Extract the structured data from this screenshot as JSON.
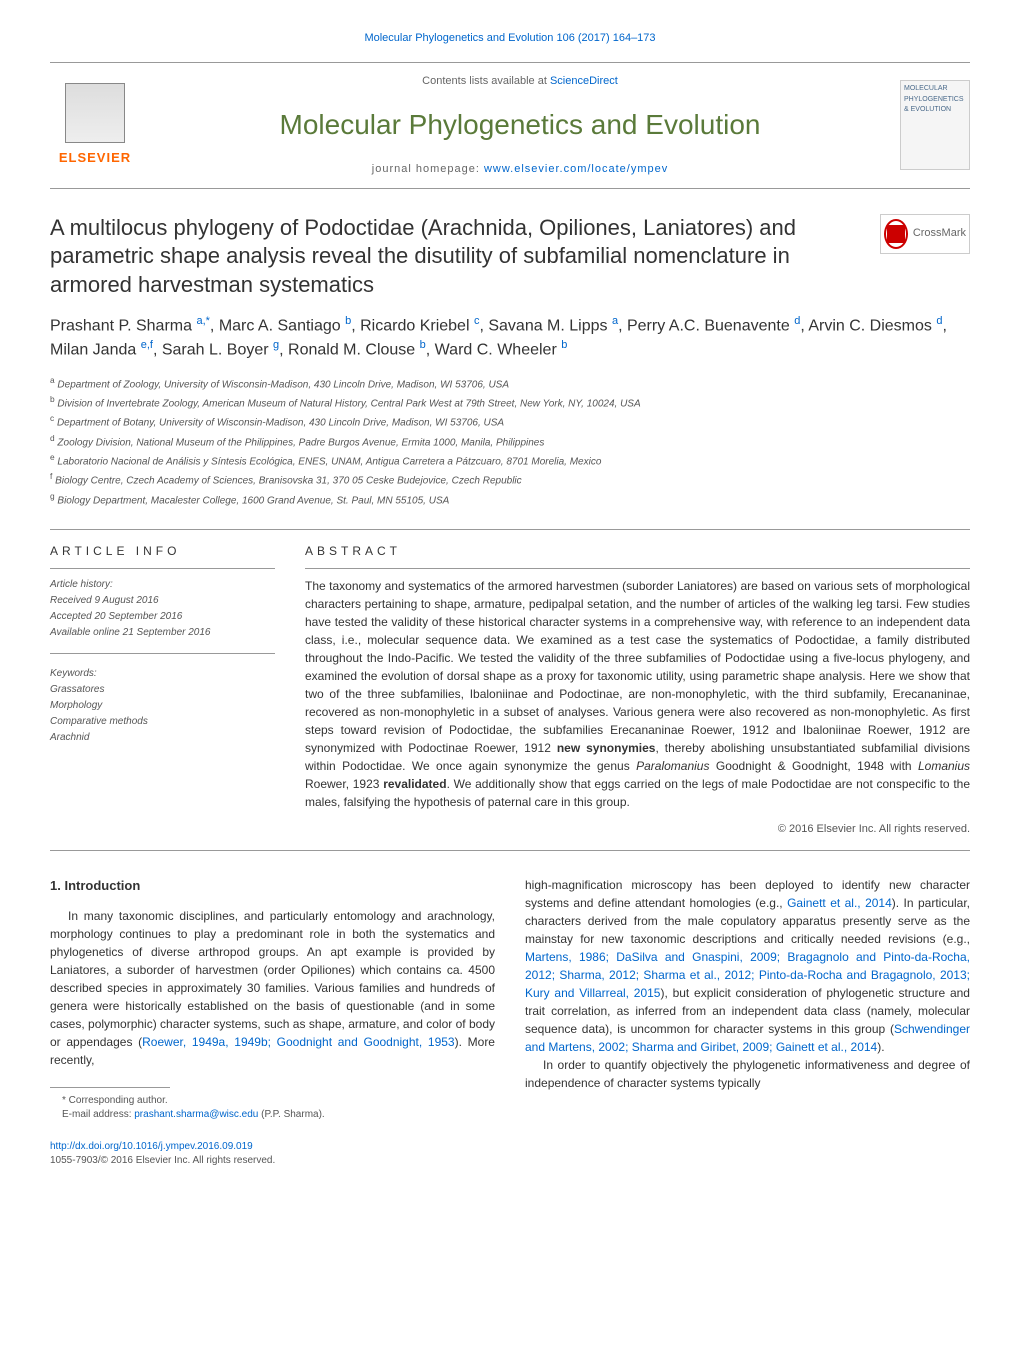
{
  "header": {
    "citation_link": "Molecular Phylogenetics and Evolution 106 (2017) 164–173"
  },
  "top": {
    "publisher": "ELSEVIER",
    "contents_prefix": "Contents lists available at ",
    "contents_link": "ScienceDirect",
    "journal_title": "Molecular Phylogenetics and Evolution",
    "homepage_prefix": "journal homepage: ",
    "homepage_link": "www.elsevier.com/locate/ympev",
    "cover_text": "MOLECULAR PHYLOGENETICS & EVOLUTION"
  },
  "article": {
    "title": "A multilocus phylogeny of Podoctidae (Arachnida, Opiliones, Laniatores) and parametric shape analysis reveal the disutility of subfamilial nomenclature in armored harvestman systematics",
    "crossmark": "CrossMark",
    "authors_html": "Prashant P. Sharma <sup>a,*</sup>, Marc A. Santiago <sup>b</sup>, Ricardo Kriebel <sup>c</sup>, Savana M. Lipps <sup>a</sup>, Perry A.C. Buenavente <sup>d</sup>, Arvin C. Diesmos <sup>d</sup>, Milan Janda <sup>e,f</sup>, Sarah L. Boyer <sup>g</sup>, Ronald M. Clouse <sup>b</sup>, Ward C. Wheeler <sup>b</sup>",
    "affiliations": [
      "a Department of Zoology, University of Wisconsin-Madison, 430 Lincoln Drive, Madison, WI 53706, USA",
      "b Division of Invertebrate Zoology, American Museum of Natural History, Central Park West at 79th Street, New York, NY, 10024, USA",
      "c Department of Botany, University of Wisconsin-Madison, 430 Lincoln Drive, Madison, WI 53706, USA",
      "d Zoology Division, National Museum of the Philippines, Padre Burgos Avenue, Ermita 1000, Manila, Philippines",
      "e Laboratorio Nacional de Análisis y Síntesis Ecológica, ENES, UNAM, Antigua Carretera a Pátzcuaro, 8701 Morelia, Mexico",
      "f Biology Centre, Czech Academy of Sciences, Branisovska 31, 370 05 Ceske Budejovice, Czech Republic",
      "g Biology Department, Macalester College, 1600 Grand Avenue, St. Paul, MN 55105, USA"
    ]
  },
  "info": {
    "label": "ARTICLE INFO",
    "history_label": "Article history:",
    "received": "Received 9 August 2016",
    "accepted": "Accepted 20 September 2016",
    "online": "Available online 21 September 2016",
    "keywords_label": "Keywords:",
    "keywords": [
      "Grassatores",
      "Morphology",
      "Comparative methods",
      "Arachnid"
    ]
  },
  "abstract": {
    "label": "ABSTRACT",
    "text_html": "The taxonomy and systematics of the armored harvestmen (suborder Laniatores) are based on various sets of morphological characters pertaining to shape, armature, pedipalpal setation, and the number of articles of the walking leg tarsi. Few studies have tested the validity of these historical character systems in a comprehensive way, with reference to an independent data class, i.e., molecular sequence data. We examined as a test case the systematics of Podoctidae, a family distributed throughout the Indo-Pacific. We tested the validity of the three subfamilies of Podoctidae using a five-locus phylogeny, and examined the evolution of dorsal shape as a proxy for taxonomic utility, using parametric shape analysis. Here we show that two of the three subfamilies, Ibaloniinae and Podoctinae, are non-monophyletic, with the third subfamily, Erecananinae, recovered as non-monophyletic in a subset of analyses. Various genera were also recovered as non-monophyletic. As first steps toward revision of Podoctidae, the subfamilies Erecananinae Roewer, 1912 and Ibaloniinae Roewer, 1912 are synonymized with Podoctinae Roewer, 1912 <b>new synonymies</b>, thereby abolishing unsubstantiated subfamilial divisions within Podoctidae. We once again synonymize the genus <i>Paralomanius</i> Goodnight & Goodnight, 1948 with <i>Lomanius</i> Roewer, 1923 <b>revalidated</b>. We additionally show that eggs carried on the legs of male Podoctidae are not conspecific to the males, falsifying the hypothesis of paternal care in this group.",
    "copyright": "© 2016 Elsevier Inc. All rights reserved."
  },
  "body": {
    "heading": "1. Introduction",
    "left_html": "In many taxonomic disciplines, and particularly entomology and arachnology, morphology continues to play a predominant role in both the systematics and phylogenetics of diverse arthropod groups. An apt example is provided by Laniatores, a suborder of harvestmen (order Opiliones) which contains ca. 4500 described species in approximately 30 families. Various families and hundreds of genera were historically established on the basis of questionable (and in some cases, polymorphic) character systems, such as shape, armature, and color of body or appendages (<a href='#'>Roewer, 1949a, 1949b; Goodnight and Goodnight, 1953</a>). More recently,",
    "right_html": "high-magnification microscopy has been deployed to identify new character systems and define attendant homologies (e.g., <a href='#'>Gainett et al., 2014</a>). In particular, characters derived from the male copulatory apparatus presently serve as the mainstay for new taxonomic descriptions and critically needed revisions (e.g., <a href='#'>Martens, 1986; DaSilva and Gnaspini, 2009; Bragagnolo and Pinto-da-Rocha, 2012; Sharma, 2012; Sharma et al., 2012; Pinto-da-Rocha and Bragagnolo, 2013; Kury and Villarreal, 2015</a>), but explicit consideration of phylogenetic structure and trait correlation, as inferred from an independent data class (namely, molecular sequence data), is uncommon for character systems in this group (<a href='#'>Schwendinger and Martens, 2002; Sharma and Giribet, 2009; Gainett et al., 2014</a>).",
    "right_p2": "In order to quantify objectively the phylogenetic informativeness and degree of independence of character systems typically"
  },
  "footnote": {
    "corresponding": "* Corresponding author.",
    "email_label": "E-mail address: ",
    "email": "prashant.sharma@wisc.edu",
    "email_suffix": " (P.P. Sharma)."
  },
  "footer": {
    "doi": "http://dx.doi.org/10.1016/j.ympev.2016.09.019",
    "issn": "1055-7903/© 2016 Elsevier Inc. All rights reserved."
  },
  "colors": {
    "link": "#0066cc",
    "journal_title": "#5a7a3a",
    "elsevier": "#ff6600",
    "text": "#333333",
    "border": "#999999",
    "crossmark": "#cc0000"
  }
}
